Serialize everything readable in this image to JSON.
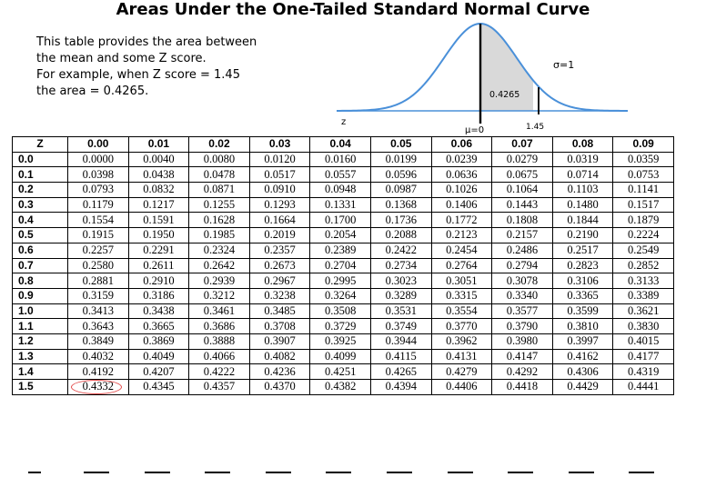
{
  "title": "Areas Under the One-Tailed Standard Normal Curve",
  "intro": {
    "lines": [
      "This table provides the area between",
      "the mean and some Z score.",
      "For example, when Z score = 1.45",
      "the area = 0.4265."
    ]
  },
  "curve": {
    "sigma_label": "σ=1",
    "area_label": "0.4265",
    "z_label": "z",
    "mu_label": "μ=0",
    "z_value_label": "1.45",
    "shade_color": "#d9d9d9",
    "curve_color": "#4a90d9"
  },
  "table": {
    "headers": [
      "Z",
      "0.00",
      "0.01",
      "0.02",
      "0.03",
      "0.04",
      "0.05",
      "0.06",
      "0.07",
      "0.08",
      "0.09"
    ],
    "rows": [
      {
        "z": "0.0",
        "values": [
          "0.0000",
          "0.0040",
          "0.0080",
          "0.0120",
          "0.0160",
          "0.0199",
          "0.0239",
          "0.0279",
          "0.0319",
          "0.0359"
        ]
      },
      {
        "z": "0.1",
        "values": [
          "0.0398",
          "0.0438",
          "0.0478",
          "0.0517",
          "0.0557",
          "0.0596",
          "0.0636",
          "0.0675",
          "0.0714",
          "0.0753"
        ]
      },
      {
        "z": "0.2",
        "values": [
          "0.0793",
          "0.0832",
          "0.0871",
          "0.0910",
          "0.0948",
          "0.0987",
          "0.1026",
          "0.1064",
          "0.1103",
          "0.1141"
        ]
      },
      {
        "z": "0.3",
        "values": [
          "0.1179",
          "0.1217",
          "0.1255",
          "0.1293",
          "0.1331",
          "0.1368",
          "0.1406",
          "0.1443",
          "0.1480",
          "0.1517"
        ]
      },
      {
        "z": "0.4",
        "values": [
          "0.1554",
          "0.1591",
          "0.1628",
          "0.1664",
          "0.1700",
          "0.1736",
          "0.1772",
          "0.1808",
          "0.1844",
          "0.1879"
        ]
      },
      {
        "z": "0.5",
        "values": [
          "0.1915",
          "0.1950",
          "0.1985",
          "0.2019",
          "0.2054",
          "0.2088",
          "0.2123",
          "0.2157",
          "0.2190",
          "0.2224"
        ]
      },
      {
        "z": "0.6",
        "values": [
          "0.2257",
          "0.2291",
          "0.2324",
          "0.2357",
          "0.2389",
          "0.2422",
          "0.2454",
          "0.2486",
          "0.2517",
          "0.2549"
        ]
      },
      {
        "z": "0.7",
        "values": [
          "0.2580",
          "0.2611",
          "0.2642",
          "0.2673",
          "0.2704",
          "0.2734",
          "0.2764",
          "0.2794",
          "0.2823",
          "0.2852"
        ]
      },
      {
        "z": "0.8",
        "values": [
          "0.2881",
          "0.2910",
          "0.2939",
          "0.2967",
          "0.2995",
          "0.3023",
          "0.3051",
          "0.3078",
          "0.3106",
          "0.3133"
        ]
      },
      {
        "z": "0.9",
        "values": [
          "0.3159",
          "0.3186",
          "0.3212",
          "0.3238",
          "0.3264",
          "0.3289",
          "0.3315",
          "0.3340",
          "0.3365",
          "0.3389"
        ]
      },
      {
        "z": "1.0",
        "values": [
          "0.3413",
          "0.3438",
          "0.3461",
          "0.3485",
          "0.3508",
          "0.3531",
          "0.3554",
          "0.3577",
          "0.3599",
          "0.3621"
        ]
      },
      {
        "z": "1.1",
        "values": [
          "0.3643",
          "0.3665",
          "0.3686",
          "0.3708",
          "0.3729",
          "0.3749",
          "0.3770",
          "0.3790",
          "0.3810",
          "0.3830"
        ]
      },
      {
        "z": "1.2",
        "values": [
          "0.3849",
          "0.3869",
          "0.3888",
          "0.3907",
          "0.3925",
          "0.3944",
          "0.3962",
          "0.3980",
          "0.3997",
          "0.4015"
        ]
      },
      {
        "z": "1.3",
        "values": [
          "0.4032",
          "0.4049",
          "0.4066",
          "0.4082",
          "0.4099",
          "0.4115",
          "0.4131",
          "0.4147",
          "0.4162",
          "0.4177"
        ]
      },
      {
        "z": "1.4",
        "values": [
          "0.4192",
          "0.4207",
          "0.4222",
          "0.4236",
          "0.4251",
          "0.4265",
          "0.4279",
          "0.4292",
          "0.4306",
          "0.4319"
        ]
      },
      {
        "z": "1.5",
        "values": [
          "0.4332",
          "0.4345",
          "0.4357",
          "0.4370",
          "0.4382",
          "0.4394",
          "0.4406",
          "0.4418",
          "0.4429",
          "0.4441"
        ]
      }
    ],
    "highlight_cell": {
      "row": 15,
      "col": 0,
      "color": "#e34a4a"
    }
  }
}
